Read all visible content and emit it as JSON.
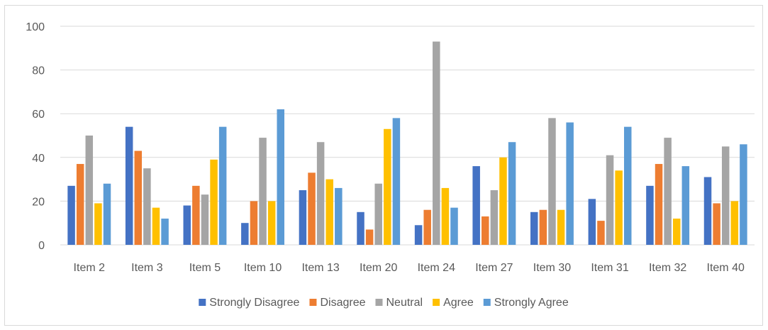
{
  "chart_data": {
    "type": "bar",
    "title": "",
    "xlabel": "",
    "ylabel": "",
    "ylim": [
      0,
      100
    ],
    "yticks": [
      0,
      20,
      40,
      60,
      80,
      100
    ],
    "grid": true,
    "legend_position": "bottom",
    "categories": [
      "Item 2",
      "Item 3",
      "Item 5",
      "Item 10",
      "Item 13",
      "Item 20",
      "Item 24",
      "Item 27",
      "Item 30",
      "Item 31",
      "Item 32",
      "Item 40"
    ],
    "series": [
      {
        "name": "Strongly Disagree",
        "color": "#4472c4",
        "values": [
          27,
          54,
          18,
          10,
          25,
          15,
          9,
          36,
          15,
          21,
          27,
          31
        ]
      },
      {
        "name": "Disagree",
        "color": "#ed7d31",
        "values": [
          37,
          43,
          27,
          20,
          33,
          7,
          16,
          13,
          16,
          11,
          37,
          19
        ]
      },
      {
        "name": "Neutral",
        "color": "#a5a5a5",
        "values": [
          50,
          35,
          23,
          49,
          47,
          28,
          93,
          25,
          58,
          41,
          49,
          45
        ]
      },
      {
        "name": "Agree",
        "color": "#ffc000",
        "values": [
          19,
          17,
          39,
          20,
          30,
          53,
          26,
          40,
          16,
          34,
          12,
          20
        ]
      },
      {
        "name": "Strongly Agree",
        "color": "#5b9bd5",
        "values": [
          28,
          12,
          54,
          62,
          26,
          58,
          17,
          47,
          56,
          54,
          36,
          46
        ]
      }
    ]
  }
}
